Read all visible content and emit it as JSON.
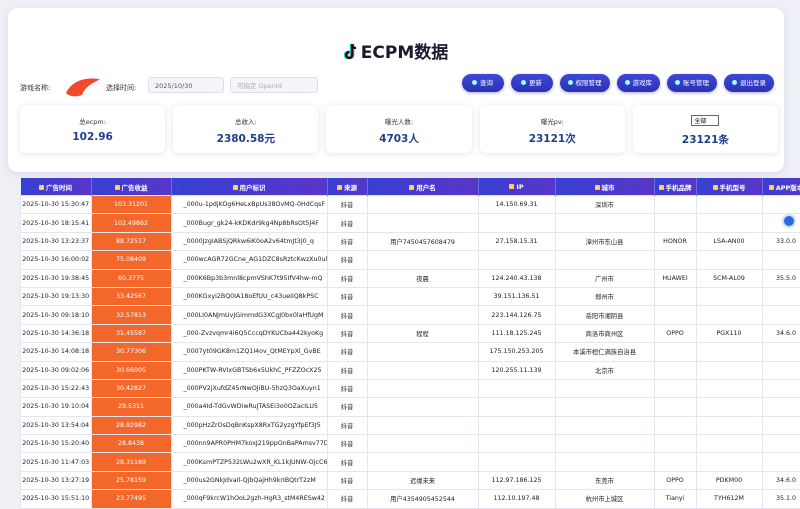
{
  "header": {
    "title": "ECPM数据"
  },
  "filters": {
    "game_label": "游戏名称:",
    "time_label": "选择时间:",
    "date": "2025/10/30",
    "openid_placeholder": "可指定 Openid"
  },
  "buttons": [
    "查询",
    "更新",
    "权限管理",
    "游戏库",
    "账号管理",
    "退出登录"
  ],
  "stats": [
    {
      "label": "总ecpm:",
      "value": "102.96"
    },
    {
      "label": "总收入:",
      "value": "2380.58元"
    },
    {
      "label": "曝光人数:",
      "value": "4703人"
    },
    {
      "label": "曝光pv:",
      "value": "23121次"
    },
    {
      "label": "全部",
      "value": "23121条"
    }
  ],
  "table": {
    "columns": [
      "广告时间",
      "广告收益",
      "用户标识",
      "来源",
      "用户名",
      "IP",
      "城市",
      "手机品牌",
      "手机型号",
      "APP版本"
    ],
    "rows": [
      [
        "2025-10-30 15:30:47",
        "103.31201",
        "_000u-1pdjKOg6HeLxBpUs38OvMQ-0HdCqsF",
        "抖音",
        "",
        "14.150.69.31",
        "深圳市",
        "",
        "",
        ""
      ],
      [
        "2025-10-30 18:15:41",
        "102.49862",
        "_000Bugr_gk24-kKDKdr9kg4Np8bRsOt5J4F",
        "抖音",
        "",
        "",
        "",
        "",
        "",
        ""
      ],
      [
        "2025-10-30 13:23:37",
        "88.72517",
        "_0000JzgIABSjQRkw6iK0oA2v64tmJt3J0_q",
        "抖音",
        "用户7450457608479",
        "27.158.15.31",
        "漳州市东山县",
        "HONOR",
        "LSA-AN00",
        "33.0.0"
      ],
      [
        "2025-10-30 16:00:02",
        "75.08409",
        "_000wcAGR72GCne_AG1DZC8sRztcKwzXu0ul",
        "抖音",
        "",
        "",
        "",
        "",
        "",
        ""
      ],
      [
        "2025-10-30 19:38:45",
        "60.3775",
        "_000K6Bp3b3mnl8cpmVShK7t95IfV4hw-mQ",
        "抖音",
        "夜晨",
        "124.240.43.138",
        "广州市",
        "HUAWEI",
        "SCM-AL09",
        "35.5.0"
      ],
      [
        "2025-10-30 19:13:30",
        "33.42567",
        "_000KGxyi2BQ0IA18oEfUU_c43ueIiQ8kPSC",
        "抖音",
        "",
        "39.151.136.51",
        "郑州市",
        "",
        "",
        ""
      ],
      [
        "2025-10-30 09:18:10",
        "32.57813",
        "_000LI0ANJmUvJGimmdG3XCgJ0bx0laHfUgM",
        "抖音",
        "",
        "223.144.126.75",
        "岳阳市湘阴县",
        "",
        "",
        ""
      ],
      [
        "2025-10-30 14:36:18",
        "31.45587",
        "_000-Zvzvqmr4i6Q5CccqDYKUCba442kyoKg",
        "抖音",
        "程程",
        "111.18.125.245",
        "商洛市商州区",
        "OPPO",
        "PGX110",
        "34.6.0"
      ],
      [
        "2025-10-30 14:08:18",
        "30.77306",
        "_0007yt09GK8m1ZQ1I4ov_QtMEYpXl_GvBE",
        "抖音",
        "",
        "175.150.253.205",
        "本溪市桓仁满族自治县",
        "",
        "",
        ""
      ],
      [
        "2025-10-30 09:02:06",
        "30.66005",
        "_000PKTW-RVIxGBTSb6x5UkhC_PFZZOcX25",
        "抖音",
        "",
        "120.255.11.139",
        "北京市",
        "",
        "",
        ""
      ],
      [
        "2025-10-30 15:22:43",
        "30.42827",
        "_000PV2jXufdZ45rNwOJiBU-5hzQ3OaXuyn1",
        "抖音",
        "",
        "",
        "",
        "",
        "",
        ""
      ],
      [
        "2025-10-30 19:10:04",
        "29.5311",
        "_000a4Id-TdGvWDiwRuJTASEi3o0OZacILU5",
        "抖音",
        "",
        "",
        "",
        "",
        "",
        ""
      ],
      [
        "2025-10-30 13:54:04",
        "28.92982",
        "_000pHzZrOsDqBnKspX8RxTG2yzgYfpEf3J5",
        "抖音",
        "",
        "",
        "",
        "",
        "",
        ""
      ],
      [
        "2025-10-30 15:20:40",
        "28.8438",
        "_000nn9APR0PHM7koxJ219ppOnBaPAmsv77D",
        "抖音",
        "",
        "",
        "",
        "",
        "",
        ""
      ],
      [
        "2025-10-30 11:47:03",
        "28.31189",
        "_000KsmPTZP532LWu2wXR_KL1kJUNW-OjcC6",
        "抖音",
        "",
        "",
        "",
        "",
        "",
        ""
      ],
      [
        "2025-10-30 13:27:19",
        "25.78159",
        "_000us2GNkJdvaIl-QjbQajHh9krIBQtrT2zM",
        "抖音",
        "迟缘未来",
        "112.97.186.125",
        "东莞市",
        "OPPO",
        "PDKM00",
        "34.6.0"
      ],
      [
        "2025-10-30 15:51:10",
        "23.77495",
        "_000qF9krcW1hOoL2gzh-HgR3_stM4RESw42",
        "抖音",
        "用户4354905452544",
        "112.10.197.48",
        "杭州市上城区",
        "Tianyi",
        "TYH612M",
        "35.1.0"
      ]
    ]
  }
}
